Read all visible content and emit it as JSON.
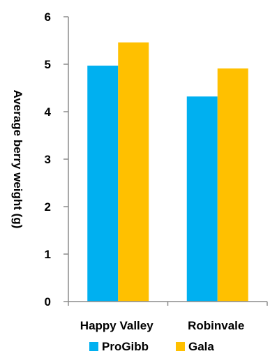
{
  "chart_data": {
    "type": "bar",
    "categories": [
      "Happy Valley",
      "Robinvale"
    ],
    "series": [
      {
        "name": "ProGibb",
        "color": "#00b0f0",
        "values": [
          4.97,
          4.32
        ]
      },
      {
        "name": "Gala",
        "color": "#ffc000",
        "values": [
          5.46,
          4.91
        ]
      }
    ],
    "title": "",
    "xlabel": "",
    "ylabel": "Average berry weight (g)",
    "ylim": [
      0,
      6
    ],
    "yticks": [
      0,
      1,
      2,
      3,
      4,
      5,
      6
    ],
    "grid": false,
    "legend_position": "bottom"
  }
}
